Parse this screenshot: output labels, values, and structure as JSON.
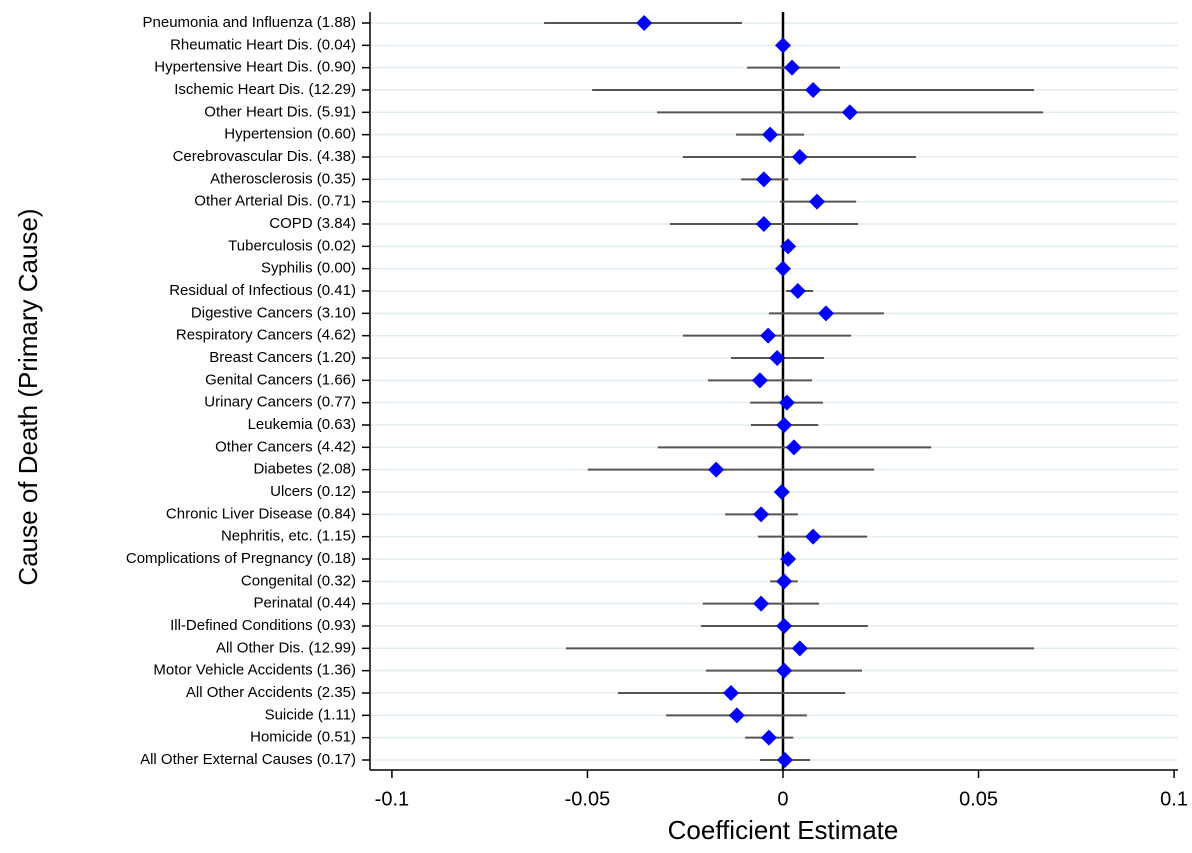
{
  "chart_data": {
    "type": "coefplot",
    "y_label": "Cause of Death (Primary Cause)",
    "x_label": "Coefficient Estimate",
    "categories": [
      "Pneumonia and Influenza (1.88)",
      "Rheumatic Heart Dis. (0.04)",
      "Hypertensive Heart Dis. (0.90)",
      "Ischemic Heart Dis. (12.29)",
      "Other Heart Dis. (5.91)",
      "Hypertension (0.60)",
      "Cerebrovascular Dis. (4.38)",
      "Atherosclerosis (0.35)",
      "Other Arterial Dis. (0.71)",
      "COPD (3.84)",
      "Tuberculosis (0.02)",
      "Syphilis (0.00)",
      "Residual of Infectious (0.41)",
      "Digestive Cancers (3.10)",
      "Respiratory Cancers (4.62)",
      "Breast Cancers (1.20)",
      "Genital Cancers (1.66)",
      "Urinary Cancers (0.77)",
      "Leukemia (0.63)",
      "Other Cancers (4.42)",
      "Diabetes (2.08)",
      "Ulcers (0.12)",
      "Chronic Liver Disease (0.84)",
      "Nephritis, etc. (1.15)",
      "Complications of Pregnancy (0.18)",
      "Congenital (0.32)",
      "Perinatal (0.44)",
      "Ill-Defined Conditions (0.93)",
      "All Other Dis. (12.99)",
      "Motor Vehicle Accidents (1.36)",
      "All Other Accidents (2.35)",
      "Suicide (1.11)",
      "Homicide (0.51)",
      "All Other External Causes (0.17)"
    ],
    "values": [
      -0.0355,
      0,
      0.0023,
      0.0077,
      0.0171,
      -0.0033,
      0.0043,
      -0.0049,
      0.0087,
      -0.0049,
      0.0013,
      0,
      0.0038,
      0.011,
      -0.0038,
      -0.0015,
      -0.0059,
      0.001,
      0.0003,
      0.0028,
      -0.0171,
      -0.0003,
      -0.0056,
      0.0077,
      0.0013,
      0.0003,
      -0.0056,
      0.0003,
      0.0043,
      0.0003,
      -0.0133,
      -0.0118,
      -0.0036,
      0.0005
    ],
    "low": [
      -0.0611,
      -0.0008,
      -0.0092,
      -0.0488,
      -0.0322,
      -0.012,
      -0.0256,
      -0.0107,
      -0.0008,
      -0.0289,
      0.0001,
      -0.0005,
      0.0008,
      -0.0036,
      -0.0256,
      -0.0133,
      -0.0192,
      -0.0084,
      -0.0082,
      -0.032,
      -0.0499,
      -0.0011,
      -0.0148,
      -0.0064,
      0,
      -0.0033,
      -0.0205,
      -0.021,
      -0.0555,
      -0.0197,
      -0.0422,
      -0.0299,
      -0.0097,
      -0.0059
    ],
    "high": [
      -0.0105,
      0.0008,
      0.0146,
      0.0642,
      0.0665,
      0.0054,
      0.034,
      0.0013,
      0.0187,
      0.0192,
      0.0025,
      0.0005,
      0.0077,
      0.0258,
      0.0174,
      0.0105,
      0.0074,
      0.0102,
      0.009,
      0.0379,
      0.0233,
      0.0005,
      0.0038,
      0.0215,
      0.0023,
      0.0038,
      0.0092,
      0.0217,
      0.0642,
      0.0202,
      0.0159,
      0.0061,
      0.0026,
      0.0069
    ],
    "color": "#0000ff",
    "bar_color": "#555555",
    "xlim": [
      -0.1056,
      0.101
    ],
    "xticks": [
      -0.1,
      -0.05,
      0,
      0.05,
      0.1
    ],
    "xline": 0,
    "grid": true
  }
}
